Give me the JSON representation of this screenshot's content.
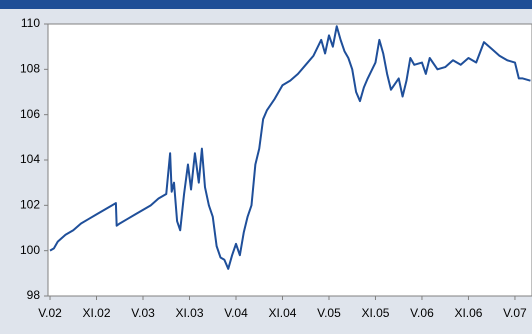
{
  "chart_data": {
    "type": "line",
    "x": [
      0,
      0.5,
      1,
      2,
      3,
      4,
      5,
      6,
      7,
      8,
      8.5,
      8.6,
      9,
      10,
      11,
      12,
      13,
      14,
      15,
      15.5,
      15.7,
      16,
      16.4,
      16.8,
      17.3,
      17.8,
      18.2,
      18.7,
      19.2,
      19.6,
      20,
      20.5,
      21,
      21.5,
      22,
      22.5,
      23,
      23.5,
      24,
      24.5,
      25,
      25.5,
      26,
      26.5,
      27,
      27.5,
      28,
      29,
      30,
      31,
      32,
      33,
      34,
      35,
      35.5,
      36,
      36.5,
      37,
      37.5,
      38,
      38.5,
      39,
      39.5,
      40,
      40.5,
      41,
      42,
      42.5,
      43,
      43.5,
      44,
      45,
      45.5,
      46,
      46.5,
      47,
      48,
      48.5,
      49,
      50,
      51,
      52,
      53,
      54,
      55,
      56,
      57,
      58,
      59,
      60,
      60.5,
      61,
      62
    ],
    "series": [
      {
        "color": "#1f4f9a",
        "values": [
          100.0,
          100.1,
          100.4,
          100.7,
          100.9,
          101.2,
          101.4,
          101.6,
          101.8,
          102.0,
          102.1,
          101.1,
          101.2,
          101.4,
          101.6,
          101.8,
          102.0,
          102.3,
          102.5,
          104.3,
          102.6,
          103.0,
          101.3,
          100.9,
          102.5,
          103.8,
          102.7,
          104.3,
          103.0,
          104.5,
          102.8,
          102.0,
          101.5,
          100.2,
          99.7,
          99.6,
          99.2,
          99.8,
          100.3,
          99.8,
          100.8,
          101.5,
          102.0,
          103.8,
          104.5,
          105.8,
          106.2,
          106.7,
          107.3,
          107.5,
          107.8,
          108.2,
          108.6,
          109.3,
          108.7,
          109.5,
          109.0,
          109.9,
          109.3,
          108.8,
          108.5,
          108.0,
          107.0,
          106.6,
          107.2,
          107.6,
          108.3,
          109.3,
          108.7,
          107.8,
          107.1,
          107.6,
          106.8,
          107.5,
          108.5,
          108.2,
          108.3,
          107.8,
          108.5,
          108.0,
          108.1,
          108.4,
          108.2,
          108.5,
          108.3,
          109.2,
          108.9,
          108.6,
          108.4,
          108.3,
          107.6,
          107.6,
          107.5
        ]
      }
    ],
    "xlim": [
      -0.26,
      62.2
    ],
    "xticks": [
      {
        "value": 0,
        "label": "V.02"
      },
      {
        "value": 6,
        "label": "XI.02"
      },
      {
        "value": 12,
        "label": "V.03"
      },
      {
        "value": 18,
        "label": "XI.03"
      },
      {
        "value": 24,
        "label": "V.04"
      },
      {
        "value": 30,
        "label": "XI.04"
      },
      {
        "value": 36,
        "label": "V.05"
      },
      {
        "value": 42,
        "label": "XI.05"
      },
      {
        "value": 48,
        "label": "V.06"
      },
      {
        "value": 54,
        "label": "XI.06"
      },
      {
        "value": 60,
        "label": "V.07"
      }
    ],
    "ylim": [
      98,
      110
    ],
    "yticks": [
      98,
      100,
      102,
      104,
      106,
      108,
      110
    ]
  }
}
